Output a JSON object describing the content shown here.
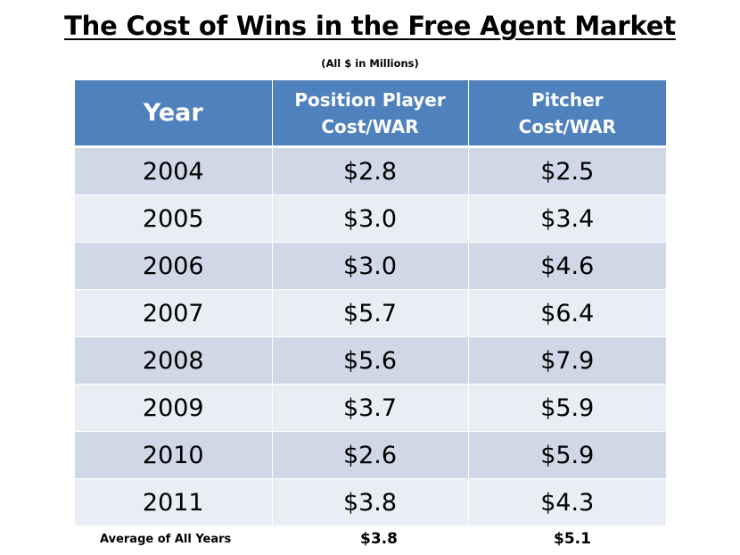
{
  "title": "The Cost of Wins in the Free Agent Market",
  "subtitle": "(All $ in Millions)",
  "table": {
    "headers": [
      "Year",
      "Position Player Cost/WAR",
      "Pitcher Cost/WAR"
    ],
    "header_lines": [
      [
        "Year"
      ],
      [
        "Position Player",
        "Cost/WAR"
      ],
      [
        "Pitcher",
        "Cost/WAR"
      ]
    ],
    "rows": [
      [
        "2004",
        "$2.8",
        "$2.5"
      ],
      [
        "2005",
        "$3.0",
        "$3.4"
      ],
      [
        "2006",
        "$3.0",
        "$4.6"
      ],
      [
        "2007",
        "$5.7",
        "$6.4"
      ],
      [
        "2008",
        "$5.6",
        "$7.9"
      ],
      [
        "2009",
        "$3.7",
        "$5.9"
      ],
      [
        "2010",
        "$2.6",
        "$5.9"
      ],
      [
        "2011",
        "$3.8",
        "$4.3"
      ]
    ]
  },
  "footer": {
    "label": "Average of All Years",
    "position_player_avg": "$3.8",
    "pitcher_avg": "$5.1"
  },
  "colors": {
    "header_bg": "#4f81bd",
    "header_text": "#ffffff",
    "row_dark": "#d0d8e8",
    "row_light": "#e9edf4"
  }
}
